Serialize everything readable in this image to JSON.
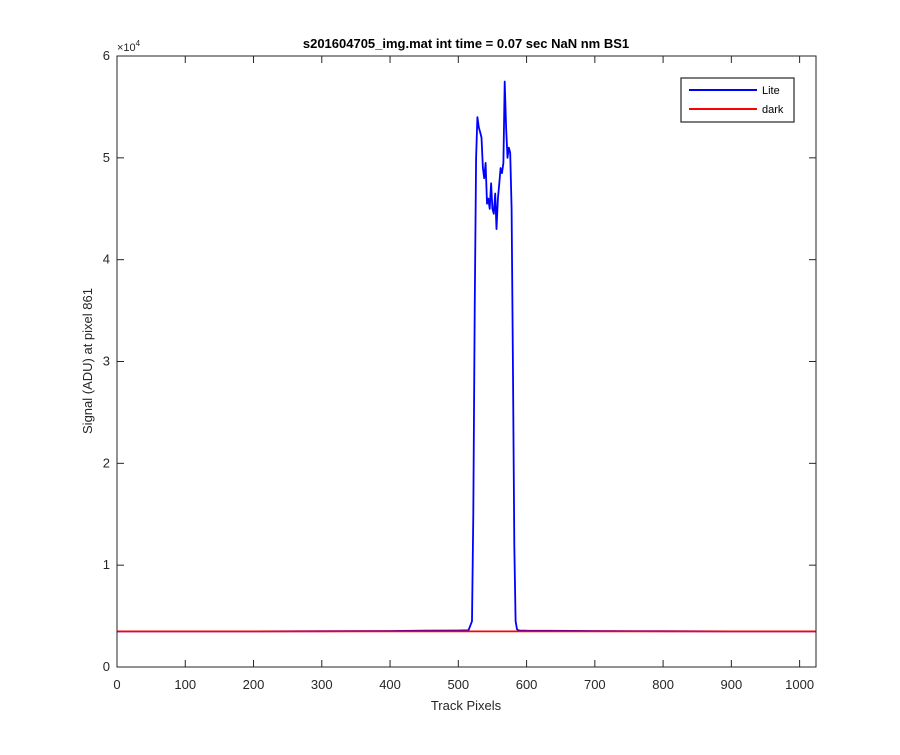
{
  "chart_data": {
    "type": "line",
    "title": "s201604705_img.mat int time = 0.07 sec  NaN nm BS1",
    "xlabel": "Track Pixels",
    "ylabel": "Signal (ADU) at pixel 861",
    "exponent_label": "×10",
    "exponent_power": "4",
    "xlim": [
      0,
      1024
    ],
    "ylim": [
      0,
      60000
    ],
    "x_ticks": [
      0,
      100,
      200,
      300,
      400,
      500,
      600,
      700,
      800,
      900,
      1000
    ],
    "y_ticks": [
      0,
      10000,
      20000,
      30000,
      40000,
      50000,
      60000
    ],
    "y_tick_labels": [
      "0",
      "1",
      "2",
      "3",
      "4",
      "5",
      "6"
    ],
    "x_tick_labels": [
      "0",
      "100",
      "200",
      "300",
      "400",
      "500",
      "600",
      "700",
      "800",
      "900",
      "1000"
    ],
    "grid": false,
    "legend_position": "top-right",
    "series": [
      {
        "name": "Lite",
        "color": "#0000ff",
        "x": [
          0,
          100,
          200,
          300,
          400,
          450,
          500,
          515,
          520,
          522,
          524,
          526,
          528,
          530,
          532,
          534,
          536,
          538,
          540,
          542,
          544,
          546,
          548,
          550,
          552,
          554,
          556,
          558,
          560,
          562,
          564,
          566,
          568,
          570,
          572,
          574,
          576,
          578,
          580,
          582,
          584,
          586,
          588,
          590,
          600,
          700,
          800,
          900,
          1024
        ],
        "y": [
          3500,
          3500,
          3500,
          3520,
          3540,
          3560,
          3580,
          3600,
          4500,
          15000,
          35000,
          50000,
          54000,
          53000,
          52500,
          52000,
          49000,
          48000,
          49500,
          45500,
          46000,
          45000,
          47500,
          45000,
          44500,
          46500,
          43000,
          46000,
          47500,
          49000,
          48500,
          49500,
          57500,
          53000,
          50000,
          51000,
          50500,
          45000,
          30000,
          12000,
          4500,
          3700,
          3600,
          3580,
          3560,
          3540,
          3520,
          3500,
          3500
        ]
      },
      {
        "name": "dark",
        "color": "#ff0000",
        "x": [
          0,
          1024
        ],
        "y": [
          3500,
          3500
        ]
      }
    ]
  }
}
